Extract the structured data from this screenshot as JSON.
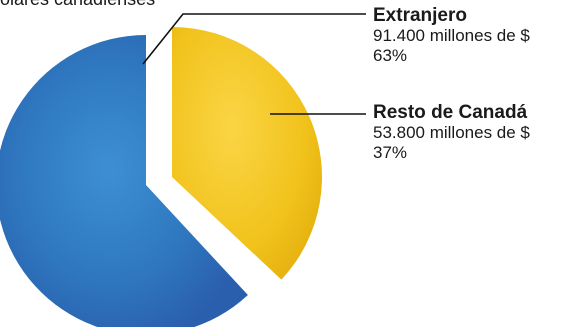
{
  "caption": "olares canadienses",
  "colors": {
    "extranjero": "#2f7ec4",
    "resto": "#f1c21b",
    "leader": "#111111"
  },
  "chart_data": {
    "type": "pie",
    "title": "",
    "slices": [
      {
        "label": "Extranjero",
        "amount": "91.400 millones de $",
        "percent_label": "63%",
        "value": 63
      },
      {
        "label": "Resto de Canadá",
        "amount": "53.800 millones de $",
        "percent_label": "37%",
        "value": 37
      }
    ]
  }
}
